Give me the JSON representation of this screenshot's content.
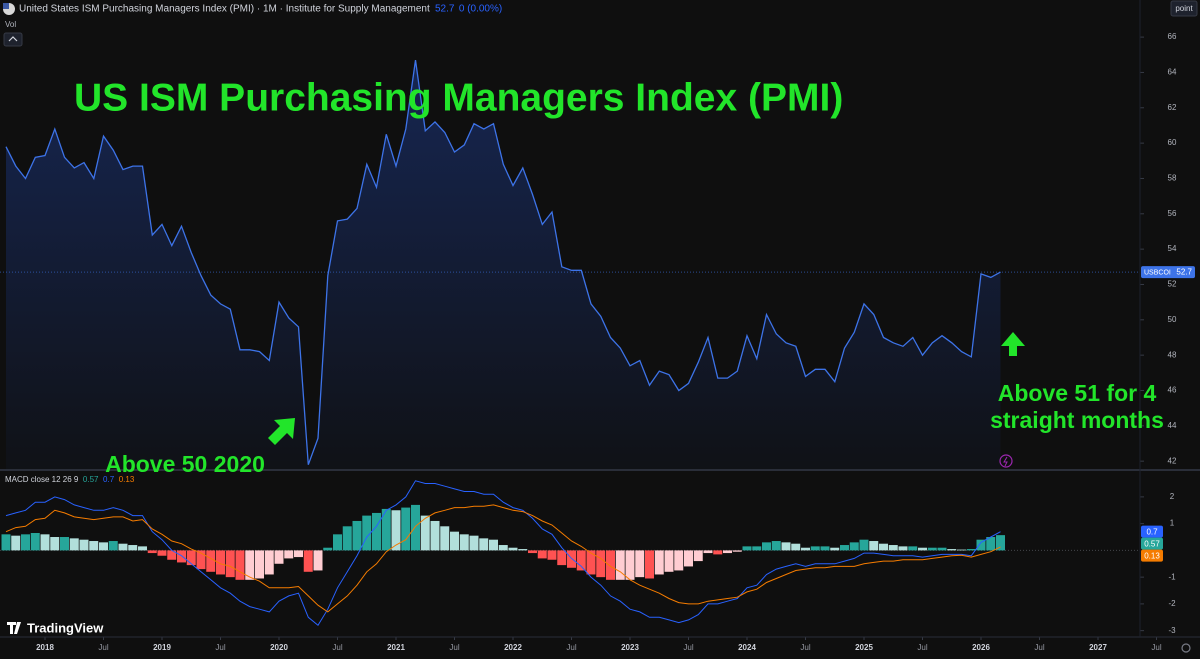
{
  "header": {
    "symbol_title": "United States ISM Purchasing Managers Index (PMI) · 1M · Institute for Supply Management",
    "change": "0 (0.00%)",
    "volume_label": "Vol",
    "scale_button": "point",
    "brand": "TradingView"
  },
  "chart_data": [
    {
      "type": "line",
      "title": "US ISM Purchasing Managers Index (PMI)",
      "annotations": [
        "Above 50 2020",
        "Above 51 for 4 straight months"
      ],
      "x": [
        "2017-09",
        "2017-10",
        "2017-11",
        "2017-12",
        "2018-01",
        "2018-02",
        "2018-03",
        "2018-04",
        "2018-05",
        "2018-06",
        "2018-07",
        "2018-08",
        "2018-09",
        "2018-10",
        "2018-11",
        "2018-12",
        "2019-01",
        "2019-02",
        "2019-03",
        "2019-04",
        "2019-05",
        "2019-06",
        "2019-07",
        "2019-08",
        "2019-09",
        "2019-10",
        "2019-11",
        "2019-12",
        "2020-01",
        "2020-02",
        "2020-03",
        "2020-04",
        "2020-05",
        "2020-06",
        "2020-07",
        "2020-08",
        "2020-09",
        "2020-10",
        "2020-11",
        "2020-12",
        "2021-01",
        "2021-02",
        "2021-03",
        "2021-04",
        "2021-05",
        "2021-06",
        "2021-07",
        "2021-08",
        "2021-09",
        "2021-10",
        "2021-11",
        "2021-12",
        "2022-01",
        "2022-02",
        "2022-03",
        "2022-04",
        "2022-05",
        "2022-06",
        "2022-07",
        "2022-08",
        "2022-09",
        "2022-10",
        "2022-11",
        "2022-12",
        "2023-01",
        "2023-02",
        "2023-03",
        "2023-04",
        "2023-05",
        "2023-06",
        "2023-07",
        "2023-08",
        "2023-09",
        "2023-10",
        "2023-11",
        "2023-12",
        "2024-01",
        "2024-02",
        "2024-03",
        "2024-04",
        "2024-05",
        "2024-06",
        "2024-07",
        "2024-08",
        "2024-09",
        "2024-10",
        "2024-11",
        "2024-12",
        "2025-01",
        "2025-02",
        "2025-03",
        "2025-04",
        "2025-05",
        "2025-06",
        "2025-07",
        "2025-08",
        "2025-09",
        "2025-10",
        "2025-11",
        "2025-12",
        "2026-01",
        "2026-02",
        "2026-03"
      ],
      "series": [
        {
          "name": "USBCOI",
          "color": "#3d73e8",
          "values": [
            59.8,
            58.7,
            58.0,
            59.2,
            59.3,
            60.8,
            59.2,
            58.6,
            58.9,
            58.0,
            60.4,
            59.6,
            58.5,
            58.7,
            58.7,
            54.8,
            55.4,
            54.2,
            55.3,
            53.8,
            52.5,
            51.4,
            50.9,
            50.6,
            48.3,
            48.3,
            48.2,
            47.7,
            51.0,
            50.1,
            49.6,
            41.8,
            43.3,
            52.5,
            55.6,
            55.7,
            56.3,
            58.8,
            57.5,
            60.5,
            58.7,
            60.8,
            64.7,
            60.7,
            61.2,
            60.6,
            59.5,
            59.9,
            61.1,
            60.8,
            61.1,
            58.8,
            57.6,
            58.6,
            57.1,
            55.4,
            56.1,
            53.0,
            52.8,
            52.8,
            50.9,
            50.2,
            49.0,
            48.4,
            47.4,
            47.7,
            46.3,
            47.1,
            46.9,
            46.0,
            46.4,
            47.6,
            49.0,
            46.7,
            46.7,
            47.1,
            49.1,
            47.8,
            50.3,
            49.2,
            48.7,
            48.5,
            46.8,
            47.2,
            47.2,
            46.5,
            48.4,
            49.3,
            50.9,
            50.3,
            49.0,
            48.7,
            48.5,
            49.0,
            48.0,
            48.7,
            49.1,
            48.7,
            48.2,
            47.9,
            52.6,
            52.4,
            52.7
          ]
        }
      ],
      "ylim": [
        41.5,
        68.1
      ],
      "yticks": [
        42,
        44,
        46,
        48,
        50,
        52,
        54,
        56,
        58,
        60,
        62,
        64,
        66
      ],
      "xticks": [
        {
          "value": "2018-01",
          "label": "2018"
        },
        {
          "value": "2018-07",
          "label": "Jul"
        },
        {
          "value": "2019-01",
          "label": "2019"
        },
        {
          "value": "2019-07",
          "label": "Jul"
        },
        {
          "value": "2020-01",
          "label": "2020"
        },
        {
          "value": "2020-07",
          "label": "Jul"
        },
        {
          "value": "2021-01",
          "label": "2021"
        },
        {
          "value": "2021-07",
          "label": "Jul"
        },
        {
          "value": "2022-01",
          "label": "2022"
        },
        {
          "value": "2022-07",
          "label": "Jul"
        },
        {
          "value": "2023-01",
          "label": "2023"
        },
        {
          "value": "2023-07",
          "label": "Jul"
        },
        {
          "value": "2024-01",
          "label": "2024"
        },
        {
          "value": "2024-07",
          "label": "Jul"
        },
        {
          "value": "2025-01",
          "label": "2025"
        },
        {
          "value": "2025-07",
          "label": "Jul"
        },
        {
          "value": "2026-01",
          "label": "2026"
        },
        {
          "value": "2026-07",
          "label": "Jul"
        },
        {
          "value": "2027-01",
          "label": "2027"
        },
        {
          "value": "2027-07",
          "label": "Jul"
        }
      ],
      "grid": false
    },
    {
      "type": "macd",
      "title": "MACD close 12 26 9",
      "histogram": {
        "colors": [
          "#26a69a",
          "#b2dfdb",
          "#ff5252",
          "#ffcdd2"
        ],
        "values": [
          0.6,
          0.55,
          0.6,
          0.65,
          0.6,
          0.5,
          0.5,
          0.45,
          0.4,
          0.35,
          0.3,
          0.35,
          0.25,
          0.2,
          0.15,
          -0.1,
          -0.2,
          -0.35,
          -0.45,
          -0.55,
          -0.7,
          -0.8,
          -0.9,
          -1.0,
          -1.1,
          -1.1,
          -1.05,
          -0.9,
          -0.5,
          -0.3,
          -0.25,
          -0.8,
          -0.75,
          0.1,
          0.6,
          0.9,
          1.1,
          1.3,
          1.4,
          1.55,
          1.5,
          1.6,
          1.7,
          1.3,
          1.1,
          0.9,
          0.7,
          0.6,
          0.55,
          0.45,
          0.4,
          0.2,
          0.1,
          0.05,
          -0.1,
          -0.3,
          -0.35,
          -0.55,
          -0.65,
          -0.75,
          -0.9,
          -1.0,
          -1.1,
          -1.1,
          -1.1,
          -1.0,
          -1.05,
          -0.9,
          -0.8,
          -0.75,
          -0.6,
          -0.4,
          -0.1,
          -0.15,
          -0.1,
          -0.05,
          0.15,
          0.15,
          0.3,
          0.35,
          0.3,
          0.25,
          0.1,
          0.15,
          0.15,
          0.1,
          0.2,
          0.3,
          0.4,
          0.35,
          0.25,
          0.2,
          0.15,
          0.15,
          0.1,
          0.1,
          0.1,
          0.05,
          0.03,
          0.05,
          0.4,
          0.5,
          0.57
        ]
      },
      "macd": {
        "color": "#2962ff",
        "values": [
          1.3,
          1.4,
          1.5,
          1.8,
          1.8,
          2.0,
          1.9,
          1.7,
          1.6,
          1.5,
          1.5,
          1.6,
          1.5,
          1.3,
          1.3,
          0.7,
          0.4,
          0.0,
          -0.2,
          -0.5,
          -0.8,
          -1.1,
          -1.4,
          -1.6,
          -1.9,
          -2.1,
          -2.2,
          -2.3,
          -1.9,
          -1.7,
          -1.6,
          -2.5,
          -2.8,
          -2.2,
          -1.4,
          -0.8,
          -0.2,
          0.5,
          0.9,
          1.5,
          1.7,
          2.0,
          2.6,
          2.5,
          2.5,
          2.4,
          2.3,
          2.2,
          2.2,
          2.1,
          2.1,
          1.8,
          1.6,
          1.5,
          1.2,
          0.8,
          0.6,
          0.1,
          -0.3,
          -0.6,
          -1.0,
          -1.3,
          -1.7,
          -1.9,
          -2.2,
          -2.3,
          -2.5,
          -2.5,
          -2.6,
          -2.7,
          -2.6,
          -2.4,
          -2.0,
          -2.0,
          -1.9,
          -1.8,
          -1.4,
          -1.3,
          -0.9,
          -0.7,
          -0.6,
          -0.5,
          -0.6,
          -0.5,
          -0.5,
          -0.5,
          -0.4,
          -0.3,
          -0.1,
          -0.1,
          -0.15,
          -0.2,
          -0.2,
          -0.2,
          -0.25,
          -0.2,
          -0.15,
          -0.15,
          -0.15,
          -0.2,
          0.3,
          0.5,
          0.7
        ]
      },
      "signal": {
        "color": "#f57c00",
        "values": [
          0.7,
          0.85,
          0.9,
          1.15,
          1.2,
          1.5,
          1.4,
          1.25,
          1.2,
          1.15,
          1.2,
          1.25,
          1.25,
          1.1,
          1.15,
          0.8,
          0.6,
          0.35,
          0.25,
          0.05,
          -0.1,
          -0.3,
          -0.5,
          -0.6,
          -0.8,
          -1.0,
          -1.15,
          -1.4,
          -1.4,
          -1.4,
          -1.35,
          -1.7,
          -2.05,
          -2.3,
          -2.0,
          -1.7,
          -1.3,
          -0.8,
          -0.5,
          -0.05,
          0.2,
          0.4,
          0.9,
          1.2,
          1.4,
          1.5,
          1.6,
          1.6,
          1.65,
          1.65,
          1.7,
          1.6,
          1.5,
          1.45,
          1.3,
          1.1,
          0.95,
          0.65,
          0.35,
          0.15,
          -0.1,
          -0.3,
          -0.6,
          -0.8,
          -1.1,
          -1.3,
          -1.45,
          -1.6,
          -1.8,
          -1.95,
          -2.0,
          -2.0,
          -1.9,
          -1.85,
          -1.8,
          -1.75,
          -1.55,
          -1.45,
          -1.2,
          -1.05,
          -0.9,
          -0.75,
          -0.7,
          -0.65,
          -0.65,
          -0.6,
          -0.6,
          -0.6,
          -0.5,
          -0.45,
          -0.4,
          -0.4,
          -0.35,
          -0.35,
          -0.35,
          -0.3,
          -0.25,
          -0.2,
          -0.18,
          -0.25,
          -0.15,
          -0.05,
          0.13
        ]
      },
      "ylim": [
        -3.2,
        2.93
      ],
      "yticks": [
        -3,
        -2,
        -1,
        1,
        2
      ]
    }
  ]
}
